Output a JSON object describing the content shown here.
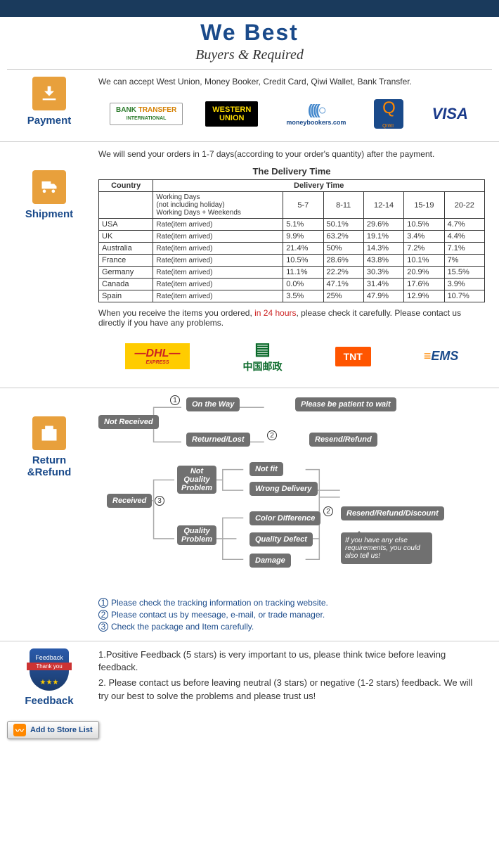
{
  "header": {
    "title": "We   Best",
    "subtitle": "Buyers & Required"
  },
  "payment": {
    "label": "Payment",
    "intro": "We can accept West Union, Money Booker, Credit Card, Qiwi Wallet, Bank Transfer.",
    "logos": {
      "bank1": "BANK",
      "bank2": "TRANSFER",
      "bank3": "INTERNATIONAL",
      "wu1": "WESTERN",
      "wu2": "UNION",
      "mb": "moneybookers.com",
      "qiwi": "QIWI",
      "visa": "VISA"
    }
  },
  "shipment": {
    "label": "Shipment",
    "intro": "We will send your orders in 1-7 days(according to your order's quantity) after the payment.",
    "table_title": "The Delivery Time",
    "columns": {
      "country": "Country",
      "deliv": "Delivery Time",
      "working": "Working Days\n(not including holiday)\nWorking Days + Weekends",
      "c1": "5-7",
      "c2": "8-11",
      "c3": "12-14",
      "c4": "15-19",
      "c5": "20-22"
    },
    "rate_label": "Rate(item arrived)",
    "rows": [
      {
        "country": "USA",
        "v": [
          "5.1%",
          "50.1%",
          "29.6%",
          "10.5%",
          "4.7%"
        ]
      },
      {
        "country": "UK",
        "v": [
          "9.9%",
          "63.2%",
          "19.1%",
          "3.4%",
          "4.4%"
        ]
      },
      {
        "country": "Australia",
        "v": [
          "21.4%",
          "50%",
          "14.3%",
          "7.2%",
          "7.1%"
        ]
      },
      {
        "country": "France",
        "v": [
          "10.5%",
          "28.6%",
          "43.8%",
          "10.1%",
          "7%"
        ]
      },
      {
        "country": "Germany",
        "v": [
          "11.1%",
          "22.2%",
          "30.3%",
          "20.9%",
          "15.5%"
        ]
      },
      {
        "country": "Canada",
        "v": [
          "0.0%",
          "47.1%",
          "31.4%",
          "17.6%",
          "3.9%"
        ]
      },
      {
        "country": "Spain",
        "v": [
          "3.5%",
          "25%",
          "47.9%",
          "12.9%",
          "10.7%"
        ]
      }
    ],
    "note1": "When you receive the items you ordered, ",
    "note_red": "in 24 hours",
    "note2": ", please check it carefully. Please contact us directly if you have any problems.",
    "carriers": {
      "dhl": "DHL",
      "cpost": "中国邮政",
      "tnt": "TNT",
      "ems": "EMS"
    }
  },
  "refund": {
    "label": "Return &Refund",
    "nodes": {
      "nr": "Not Received",
      "onway": "On the Way",
      "patient": "Please be patient to wait",
      "retlost": "Returned/Lost",
      "resend1": "Resend/Refund",
      "recv": "Received",
      "nqp": "Not\nQuality\nProblem",
      "notfit": "Not fit",
      "wrong": "Wrong Delivery",
      "qp": "Quality\nProblem",
      "color": "Color Difference",
      "defect": "Quality Defect",
      "damage": "Damage",
      "resend2": "Resend/Refund/Discount",
      "speech": "If you have any else requirements, you could also tell us!"
    },
    "tips": [
      "Please check the tracking information on tracking website.",
      "Please contact us by meesage, e-mail, or trade manager.",
      "Check the package and Item carefully."
    ]
  },
  "feedback": {
    "label": "Feedback",
    "shield": {
      "top": "Feedback",
      "ribbon": "Thank you"
    },
    "p1": "1.Positive Feedback (5 stars) is very important to us, please think twice before leaving feedback.",
    "p2": "2. Please contact us before leaving neutral (3 stars) or negative (1-2 stars) feedback. We will try our best to solve the problems and please trust us!"
  },
  "store_button": "Add to Store List"
}
